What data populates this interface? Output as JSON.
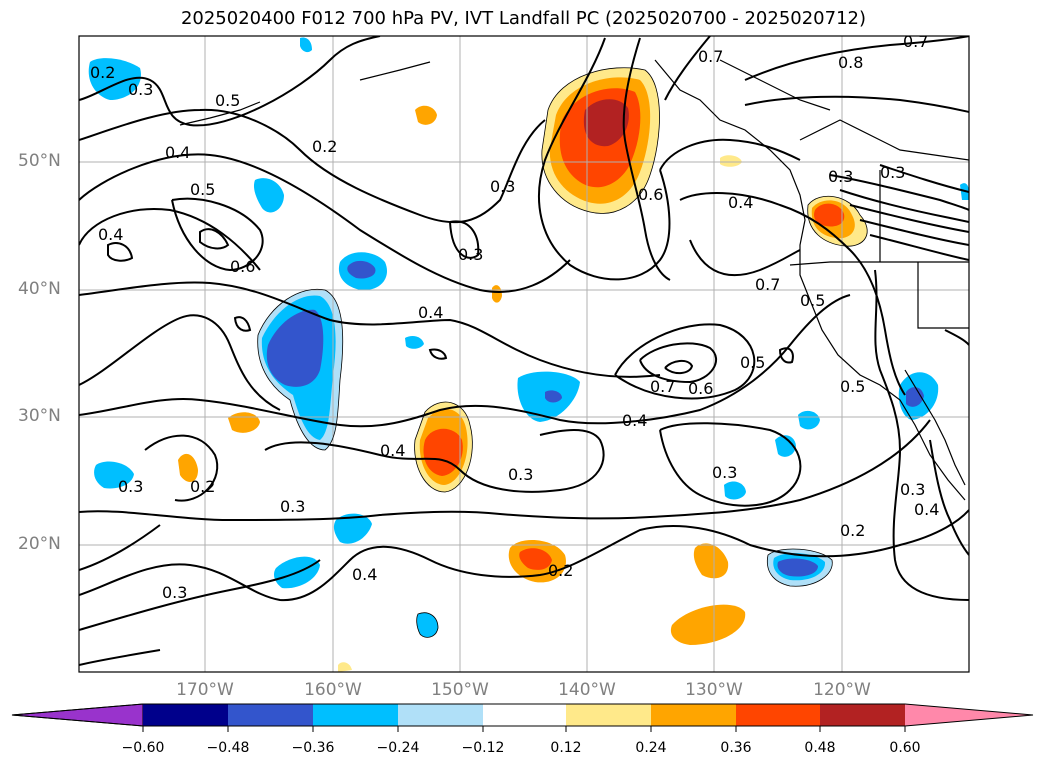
{
  "title": "2025020400 F012 700 hPa PV, IVT Landfall PC (2025020700 - 2025020712)",
  "lat_ticks": [
    "50°N",
    "40°N",
    "30°N",
    "20°N"
  ],
  "lon_ticks": [
    "170°W",
    "160°W",
    "150°W",
    "140°W",
    "130°W",
    "120°W"
  ],
  "colorbar": {
    "tick_labels": [
      "−0.60",
      "−0.48",
      "−0.36",
      "−0.24",
      "−0.12",
      "0.12",
      "0.24",
      "0.36",
      "0.48",
      "0.60"
    ],
    "colors": [
      "#9933cc",
      "#00008b",
      "#3355cc",
      "#00bfff",
      "#b0e0f8",
      "#ffffff",
      "#ffe98a",
      "#ffa500",
      "#ff4500",
      "#b22222",
      "#ff88aa"
    ]
  },
  "contour_labels": [
    "0.2",
    "0.3",
    "0.5",
    "0.4",
    "0.2",
    "0.5",
    "0.4",
    "0.6",
    "0.3",
    "0.3",
    "0.7",
    "0.8",
    "0.7",
    "0.6",
    "0.4",
    "0.3",
    "0.4",
    "0.5",
    "0.7",
    "0.6",
    "0.5",
    "0.4",
    "0.4",
    "0.3",
    "0.3",
    "0.2",
    "0.3",
    "0.3",
    "0.4",
    "0.2",
    "0.3",
    "0.3",
    "0.2",
    "0.4",
    "0.3",
    "0.7",
    "0.5"
  ]
}
